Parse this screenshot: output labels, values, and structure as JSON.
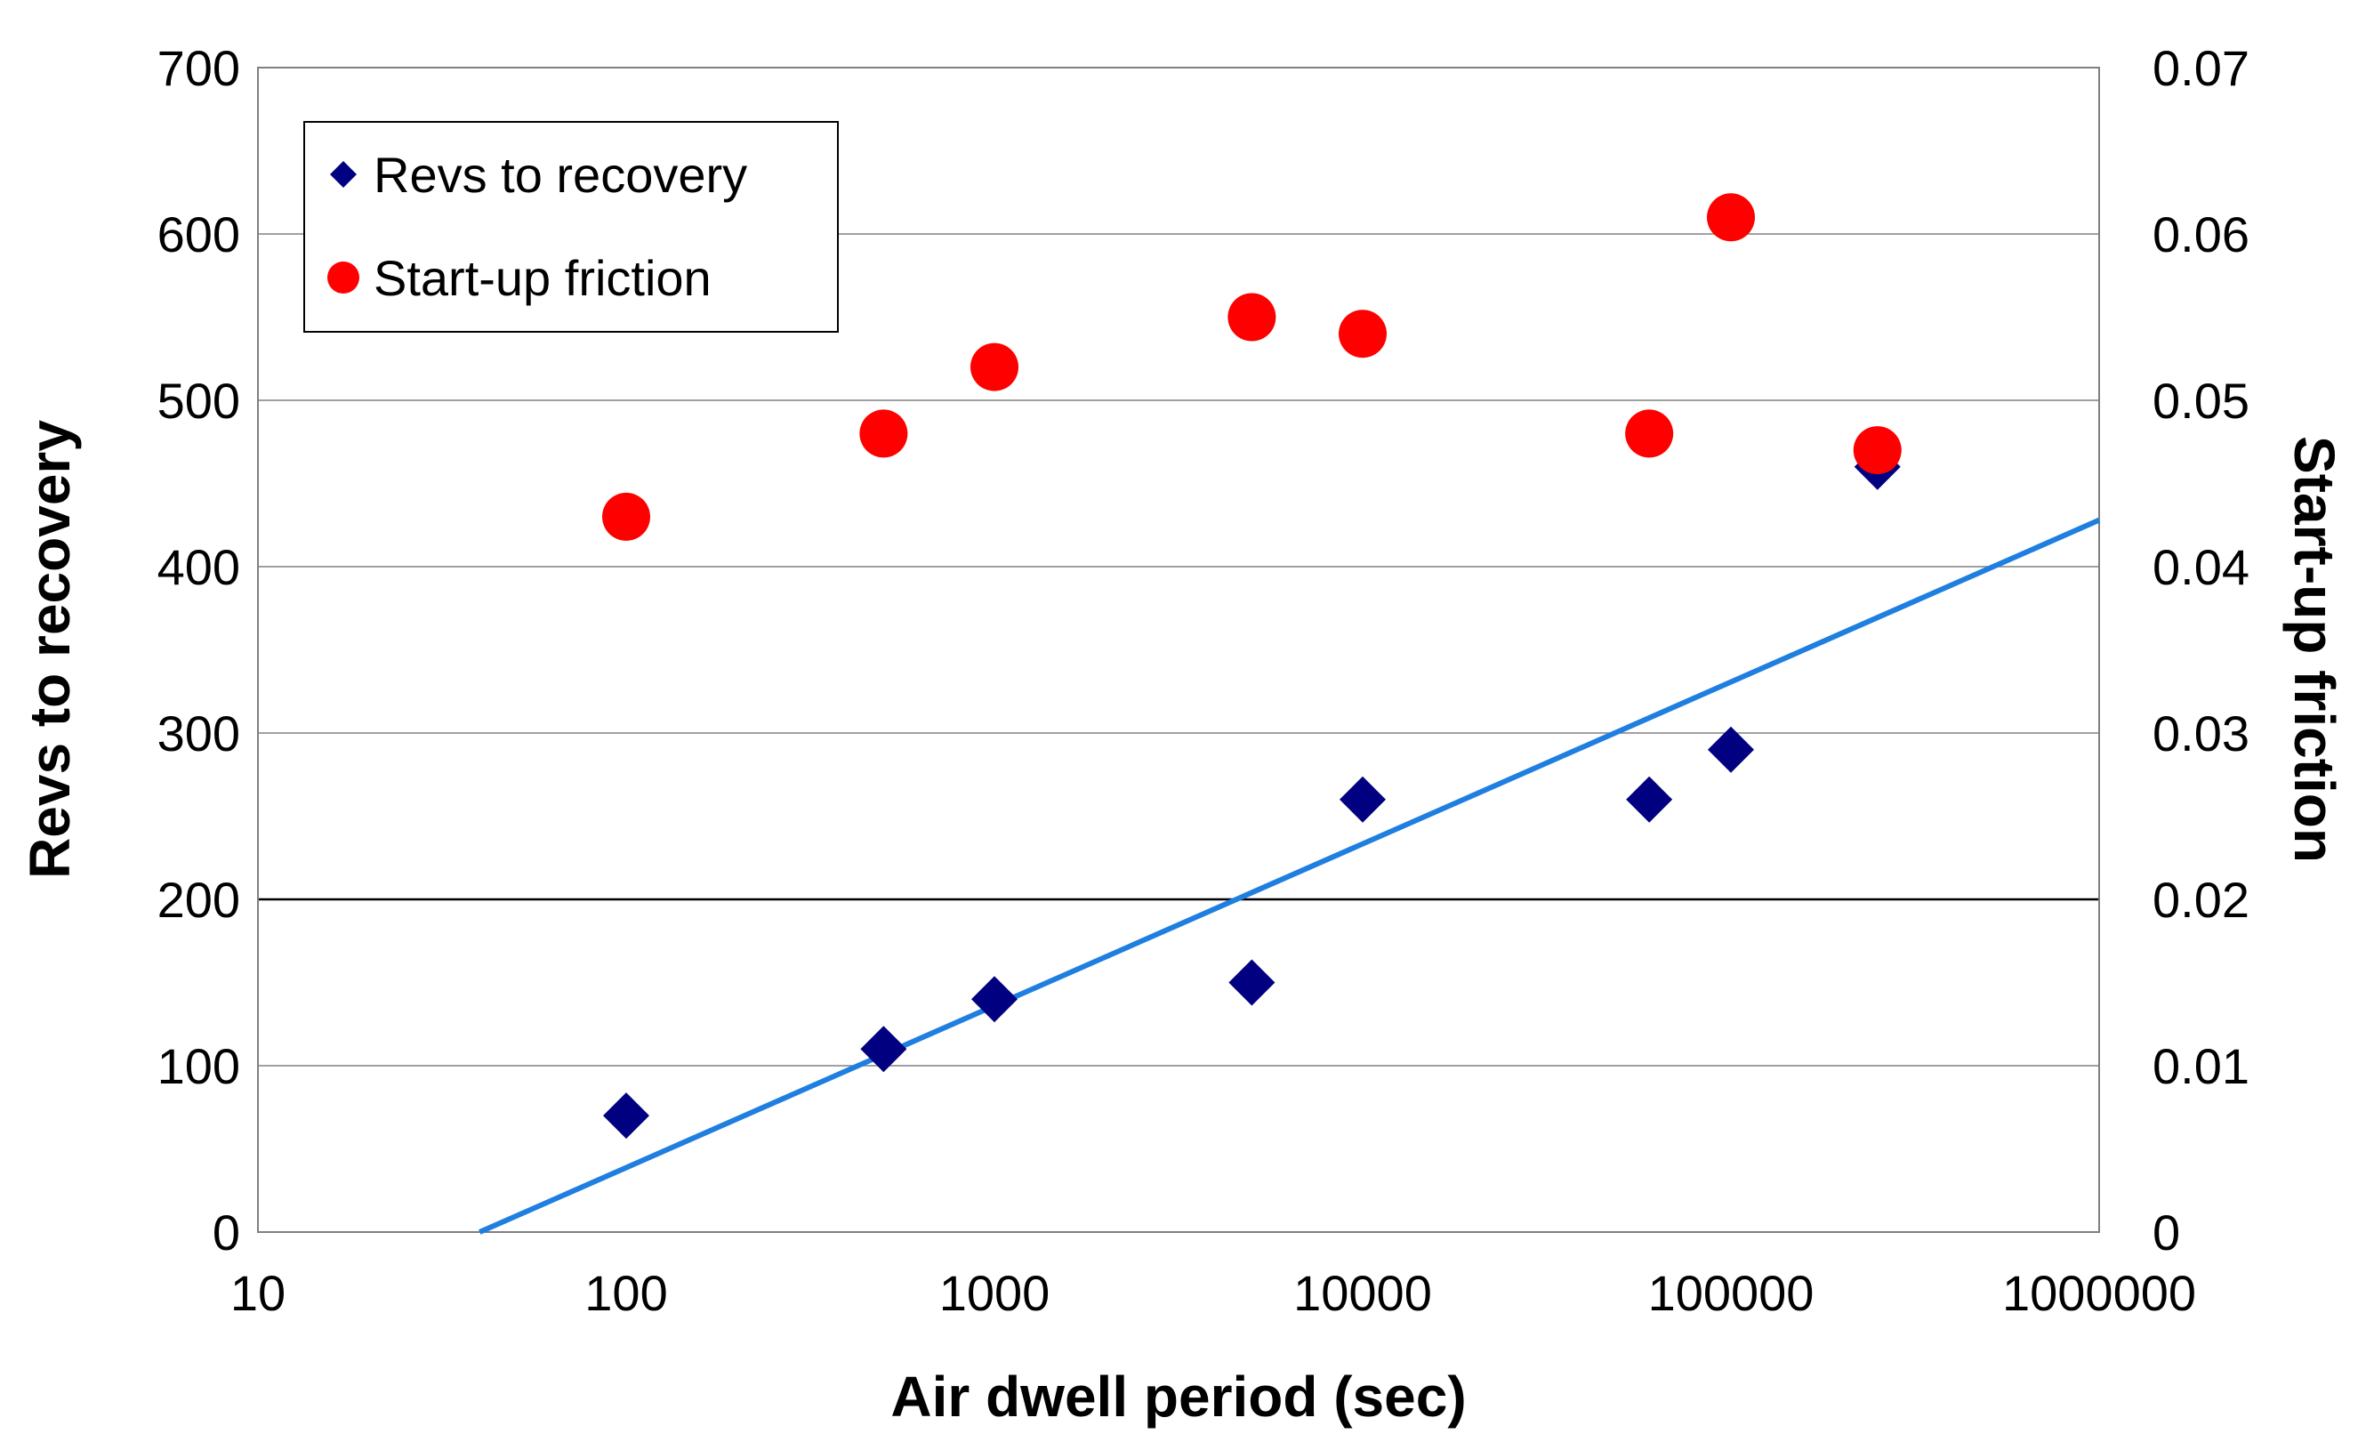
{
  "chart_data": {
    "type": "scatter",
    "title": "",
    "xlabel": "Air dwell period (sec)",
    "ylabel": "Revs to recovery",
    "y2label": "Start-up friction",
    "xscale": "log",
    "xlim": [
      10,
      1000000
    ],
    "ylim": [
      0,
      700
    ],
    "y2lim": [
      0,
      0.07
    ],
    "xticks": [
      "10",
      "100",
      "1000",
      "10000",
      "100000",
      "1000000"
    ],
    "yticks": [
      "0",
      "100",
      "200",
      "300",
      "400",
      "500",
      "600",
      "700"
    ],
    "y2ticks": [
      "0",
      "0.01",
      "0.02",
      "0.03",
      "0.04",
      "0.05",
      "0.06",
      "0.07"
    ],
    "grid": true,
    "legend_position": "top-left",
    "series": [
      {
        "name": "Revs to recovery",
        "axis": "left",
        "marker": "diamond",
        "color": "#000080",
        "x": [
          100,
          500,
          1000,
          5000,
          10000,
          60000,
          100000,
          250000
        ],
        "y": [
          70,
          110,
          140,
          150,
          260,
          260,
          290,
          460
        ]
      },
      {
        "name": "Start-up friction",
        "axis": "right",
        "marker": "circle",
        "color": "#ff0000",
        "x": [
          100,
          500,
          1000,
          5000,
          10000,
          60000,
          100000,
          250000
        ],
        "y": [
          0.043,
          0.048,
          0.052,
          0.055,
          0.054,
          0.048,
          0.061,
          0.047
        ]
      }
    ],
    "trendline": {
      "series": "Revs to recovery",
      "type": "logarithmic",
      "color": "#1f7fe0",
      "x": [
        40,
        1000000
      ],
      "y": [
        0,
        428
      ]
    }
  }
}
